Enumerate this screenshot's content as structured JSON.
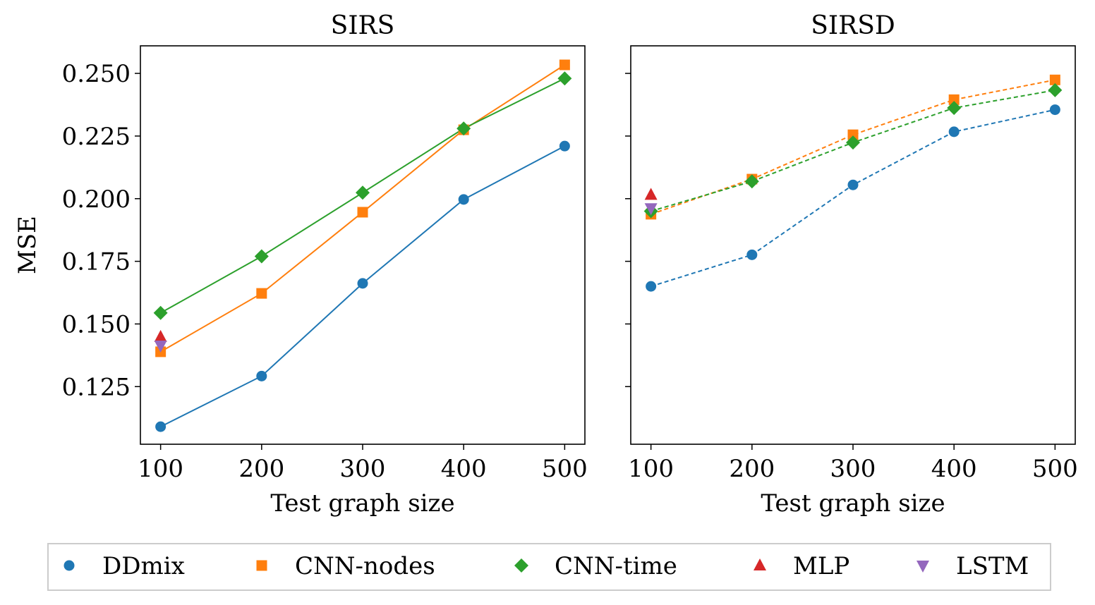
{
  "chart_data": [
    {
      "type": "line",
      "title": "SIRS",
      "xlabel": "Test graph size",
      "ylabel": "MSE",
      "x": [
        100,
        200,
        300,
        400,
        500
      ],
      "xticks": [
        "100",
        "200",
        "300",
        "400",
        "500"
      ],
      "xlim": [
        80,
        520
      ],
      "ylim": [
        0.102,
        0.261
      ],
      "yticks": [
        "0.125",
        "0.150",
        "0.175",
        "0.200",
        "0.225",
        "0.250"
      ],
      "line_style": "solid",
      "series": [
        {
          "name": "DDmix",
          "values": [
            0.109,
            0.1292,
            0.1662,
            0.1997,
            0.221
          ]
        },
        {
          "name": "CNN-nodes",
          "values": [
            0.1389,
            0.1622,
            0.1946,
            0.2275,
            0.2534
          ]
        },
        {
          "name": "CNN-time",
          "values": [
            0.1544,
            0.177,
            0.2024,
            0.228,
            0.248
          ]
        },
        {
          "name": "MLP",
          "values": [
            0.1448,
            null,
            null,
            null,
            null
          ]
        },
        {
          "name": "LSTM",
          "values": [
            0.1414,
            null,
            null,
            null,
            null
          ]
        }
      ]
    },
    {
      "type": "line",
      "title": "SIRSD",
      "xlabel": "Test graph size",
      "ylabel": "",
      "x": [
        100,
        200,
        300,
        400,
        500
      ],
      "xticks": [
        "100",
        "200",
        "300",
        "400",
        "500"
      ],
      "xlim": [
        80,
        520
      ],
      "ylim": [
        0.102,
        0.261
      ],
      "yticks": [],
      "line_style": "dashed",
      "series": [
        {
          "name": "DDmix",
          "values": [
            0.165,
            0.1776,
            0.2055,
            0.2267,
            0.2355
          ]
        },
        {
          "name": "CNN-nodes",
          "values": [
            0.1938,
            0.2078,
            0.2255,
            0.2395,
            0.2474
          ]
        },
        {
          "name": "CNN-time",
          "values": [
            0.195,
            0.2069,
            0.2224,
            0.2362,
            0.2433
          ]
        },
        {
          "name": "MLP",
          "values": [
            0.2015,
            null,
            null,
            null,
            null
          ]
        },
        {
          "name": "LSTM",
          "values": [
            0.1962,
            null,
            null,
            null,
            null
          ]
        }
      ]
    }
  ],
  "legend": {
    "placement": "bottom",
    "items": [
      {
        "label": "DDmix",
        "marker": "circle",
        "color": "#1f77b4"
      },
      {
        "label": "CNN-nodes",
        "marker": "square",
        "color": "#ff7f0e"
      },
      {
        "label": "CNN-time",
        "marker": "diamond",
        "color": "#2ca02c"
      },
      {
        "label": "MLP",
        "marker": "triangle-up",
        "color": "#d62728"
      },
      {
        "label": "LSTM",
        "marker": "triangle-down",
        "color": "#9467bd"
      }
    ]
  },
  "colors": {
    "DDmix": "#1f77b4",
    "CNN-nodes": "#ff7f0e",
    "CNN-time": "#2ca02c",
    "MLP": "#d62728",
    "LSTM": "#9467bd"
  },
  "markers": {
    "DDmix": "circle",
    "CNN-nodes": "square",
    "CNN-time": "diamond",
    "MLP": "triangle-up",
    "LSTM": "triangle-down"
  }
}
